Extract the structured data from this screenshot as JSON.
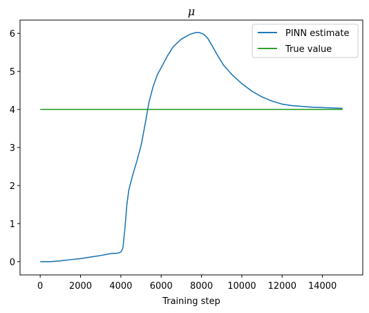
{
  "chart_data": {
    "type": "line",
    "title": "μ",
    "xlabel": "Training step",
    "ylabel": "",
    "xlim": [
      -1000,
      16000
    ],
    "ylim": [
      -0.35,
      6.35
    ],
    "xticks": [
      0,
      2000,
      4000,
      6000,
      8000,
      10000,
      12000,
      14000
    ],
    "yticks": [
      0,
      1,
      2,
      3,
      4,
      5,
      6
    ],
    "legend_position": "top-right",
    "series": [
      {
        "name": "PINN estimate",
        "color": "#1f77b4",
        "x": [
          0,
          500,
          1000,
          1500,
          2000,
          2500,
          3000,
          3500,
          3800,
          3900,
          4000,
          4100,
          4200,
          4300,
          4400,
          4600,
          4800,
          5000,
          5200,
          5400,
          5600,
          5800,
          6000,
          6300,
          6600,
          7000,
          7400,
          7700,
          7900,
          8100,
          8300,
          8500,
          8800,
          9100,
          9500,
          10000,
          10500,
          11000,
          11500,
          12000,
          12500,
          13000,
          13500,
          14000,
          14500,
          15000
        ],
        "values": [
          0.0,
          0.0,
          0.02,
          0.05,
          0.08,
          0.12,
          0.16,
          0.21,
          0.22,
          0.23,
          0.25,
          0.35,
          0.85,
          1.5,
          1.9,
          2.3,
          2.65,
          3.05,
          3.6,
          4.2,
          4.6,
          4.9,
          5.1,
          5.4,
          5.65,
          5.85,
          5.97,
          6.02,
          6.02,
          5.98,
          5.88,
          5.7,
          5.42,
          5.16,
          4.92,
          4.68,
          4.48,
          4.33,
          4.22,
          4.14,
          4.1,
          4.08,
          4.06,
          4.05,
          4.04,
          4.03
        ]
      },
      {
        "name": "True value",
        "color": "#2ca02c",
        "x": [
          0,
          15000
        ],
        "values": [
          4.0,
          4.0
        ]
      }
    ]
  }
}
